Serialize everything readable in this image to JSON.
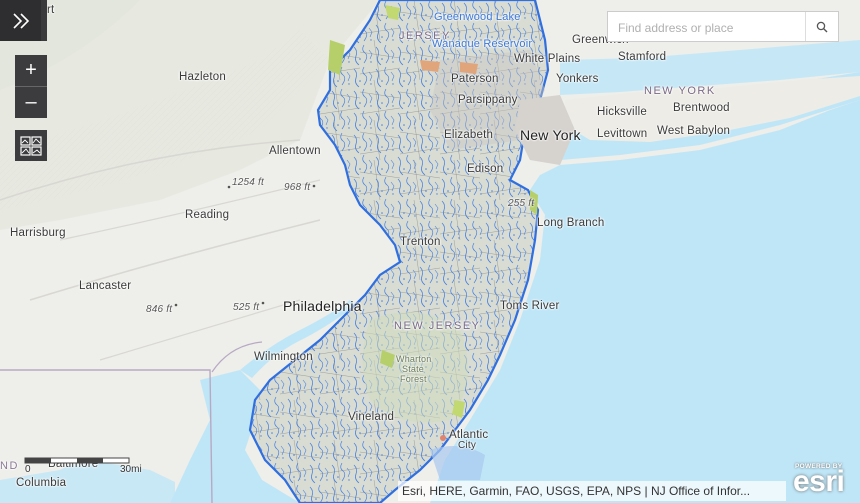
{
  "panel": {
    "toggle_icon": "double-chevron-right-icon"
  },
  "zoom": {
    "in_label": "+",
    "out_label": "–"
  },
  "basemap": {
    "icon": "basemap-gallery-icon"
  },
  "search": {
    "placeholder": "Find address or place",
    "value": "",
    "icon": "search-icon"
  },
  "map": {
    "colors": {
      "land": "#eeeeea",
      "ocean": "#bfe6f7",
      "nj_fill": "#d9dcd3",
      "streams": "#3d7be0",
      "forest": "#cfdcbf"
    },
    "places": {
      "hazleton": "Hazleton",
      "allentown": "Allentown",
      "reading": "Reading",
      "harrisburg": "Harrisburg",
      "lancaster": "Lancaster",
      "philadelphia": "Philadelphia",
      "wilmington": "Wilmington",
      "vineland": "Vineland",
      "atlantic_city_1": "Atlantic",
      "atlantic_city_2": "City",
      "toms_river": "Toms River",
      "trenton": "Trenton",
      "edison": "Edison",
      "long_branch": "Long Branch",
      "new_york": "New York",
      "elizabeth": "Elizabeth",
      "paterson": "Paterson",
      "parsippany": "Parsippany",
      "white_plains": "White Plains",
      "yonkers": "Yonkers",
      "greenwich": "Greenwich",
      "stamford": "Stamford",
      "hicksville": "Hicksville",
      "brentwood": "Brentwood",
      "levittown": "Levittown",
      "west_babylon": "West Babylon",
      "baltimore": "Baltimore",
      "columbia": "Columbia",
      "nd": "ND",
      "partial_top": "rt"
    },
    "states": {
      "new_york": "NEW YORK",
      "new_jersey": "NEW JERSEY",
      "nj_top": "JERSEY"
    },
    "water": {
      "greenwood_lake": "Greenwood Lake",
      "wanaque": "Wanaque Reservoir"
    },
    "parks": {
      "wharton1": "Wharton",
      "wharton2": "State",
      "wharton3": "Forest"
    },
    "elevations": {
      "e1254": "1254 ft",
      "e968": "968 ft",
      "e525": "525 ft",
      "e846": "846 ft",
      "e255": "255 ft"
    }
  },
  "scale": {
    "label_0": "0",
    "label_30": "30mi"
  },
  "attribution": {
    "text": "Esri, HERE, Garmin, FAO, USGS, EPA, NPS | NJ Office of Infor..."
  },
  "logo": {
    "powered_by": "POWERED BY",
    "brand": "esri"
  }
}
